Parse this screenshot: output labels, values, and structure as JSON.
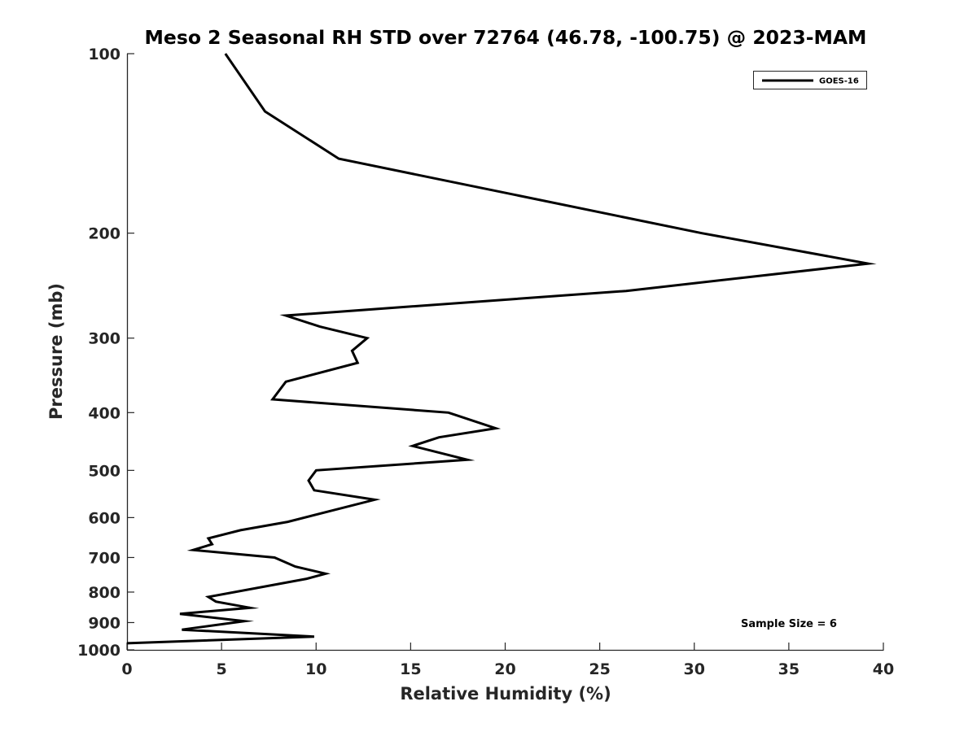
{
  "chart_data": {
    "type": "line",
    "title": "Meso 2 Seasonal RH STD over 72764 (46.78, -100.75) @ 2023-MAM",
    "xlabel": "Relative Humidity (%)",
    "ylabel": "Pressure (mb)",
    "xlim": [
      0,
      40
    ],
    "ylim": [
      100,
      1000
    ],
    "y_scale": "log",
    "y_reversed": true,
    "x_ticks": [
      0,
      5,
      10,
      15,
      20,
      25,
      30,
      35,
      40
    ],
    "y_ticks": [
      100,
      200,
      300,
      400,
      500,
      600,
      700,
      800,
      900,
      1000
    ],
    "grid": false,
    "legend_position": "top-right",
    "annotation": "Sample Size = 6",
    "series": [
      {
        "name": "GOES-16",
        "color": "#000000",
        "points": [
          {
            "x": 5.2,
            "y": 100
          },
          {
            "x": 7.3,
            "y": 125
          },
          {
            "x": 11.2,
            "y": 150
          },
          {
            "x": 30.4,
            "y": 200
          },
          {
            "x": 39.2,
            "y": 225
          },
          {
            "x": 26.4,
            "y": 250
          },
          {
            "x": 8.4,
            "y": 275
          },
          {
            "x": 10.2,
            "y": 287
          },
          {
            "x": 12.7,
            "y": 300
          },
          {
            "x": 11.9,
            "y": 315
          },
          {
            "x": 12.2,
            "y": 330
          },
          {
            "x": 8.4,
            "y": 355
          },
          {
            "x": 7.7,
            "y": 380
          },
          {
            "x": 17.0,
            "y": 400
          },
          {
            "x": 19.5,
            "y": 425
          },
          {
            "x": 16.5,
            "y": 440
          },
          {
            "x": 15.1,
            "y": 455
          },
          {
            "x": 18.0,
            "y": 480
          },
          {
            "x": 10.0,
            "y": 500
          },
          {
            "x": 9.6,
            "y": 520
          },
          {
            "x": 9.9,
            "y": 540
          },
          {
            "x": 13.1,
            "y": 560
          },
          {
            "x": 8.5,
            "y": 610
          },
          {
            "x": 6.0,
            "y": 630
          },
          {
            "x": 4.3,
            "y": 650
          },
          {
            "x": 4.5,
            "y": 665
          },
          {
            "x": 3.5,
            "y": 680
          },
          {
            "x": 7.8,
            "y": 700
          },
          {
            "x": 8.9,
            "y": 725
          },
          {
            "x": 10.5,
            "y": 745
          },
          {
            "x": 9.5,
            "y": 760
          },
          {
            "x": 4.3,
            "y": 815
          },
          {
            "x": 4.7,
            "y": 830
          },
          {
            "x": 6.5,
            "y": 850
          },
          {
            "x": 2.8,
            "y": 870
          },
          {
            "x": 6.2,
            "y": 895
          },
          {
            "x": 2.9,
            "y": 925
          },
          {
            "x": 9.9,
            "y": 950
          },
          {
            "x": 0.0,
            "y": 975
          }
        ]
      }
    ]
  }
}
